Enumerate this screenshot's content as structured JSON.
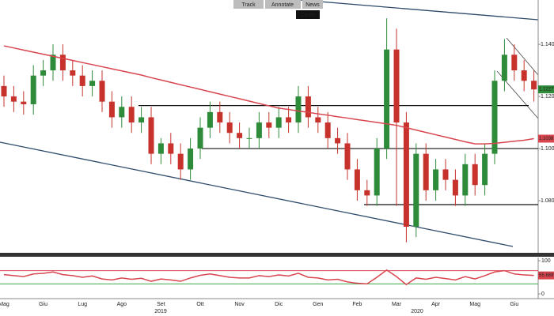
{
  "chart_data": {
    "type": "candlestick",
    "toolbar": [
      "Track",
      "Annotate",
      "News",
      "Zoom"
    ],
    "categories": [
      "Mag",
      null,
      null,
      null,
      "Giu",
      null,
      null,
      null,
      "Lug",
      null,
      null,
      null,
      "Ago",
      null,
      null,
      null,
      "Set",
      null,
      null,
      null,
      "Ott",
      null,
      null,
      null,
      "Nov",
      null,
      null,
      null,
      "Dic",
      null,
      null,
      null,
      "Gen",
      null,
      null,
      null,
      "Feb",
      null,
      null,
      null,
      "Mar",
      null,
      null,
      null,
      "Apr",
      null,
      null,
      null,
      "Mag",
      null,
      null,
      null,
      "Giu",
      null,
      null
    ],
    "years": [
      "2019",
      "2020"
    ],
    "open": [
      1.124,
      1.12,
      1.118,
      1.117,
      1.128,
      1.13,
      1.136,
      1.13,
      1.128,
      1.124,
      1.126,
      1.118,
      1.112,
      1.116,
      1.11,
      1.112,
      1.098,
      1.102,
      1.098,
      1.092,
      1.1,
      1.108,
      1.114,
      1.11,
      1.106,
      1.104,
      1.104,
      1.11,
      1.108,
      1.112,
      1.11,
      1.12,
      1.112,
      1.11,
      1.104,
      1.102,
      1.092,
      1.084,
      1.082,
      1.1,
      1.138,
      1.11,
      1.07,
      1.098,
      1.084,
      1.092,
      1.088,
      1.082,
      1.094,
      1.086,
      1.098,
      1.126,
      1.136,
      1.13,
      1.126
    ],
    "high": [
      1.128,
      1.124,
      1.122,
      1.132,
      1.134,
      1.14,
      1.14,
      1.134,
      1.132,
      1.13,
      1.13,
      1.122,
      1.12,
      1.12,
      1.116,
      1.116,
      1.104,
      1.106,
      1.102,
      1.104,
      1.112,
      1.118,
      1.118,
      1.114,
      1.11,
      1.108,
      1.114,
      1.114,
      1.116,
      1.116,
      1.124,
      1.124,
      1.116,
      1.114,
      1.108,
      1.106,
      1.096,
      1.088,
      1.104,
      1.15,
      1.146,
      1.114,
      1.102,
      1.102,
      1.096,
      1.096,
      1.092,
      1.098,
      1.098,
      1.102,
      1.13,
      1.142,
      1.14,
      1.134,
      1.13
    ],
    "low": [
      1.116,
      1.114,
      1.113,
      1.113,
      1.124,
      1.126,
      1.126,
      1.124,
      1.12,
      1.12,
      1.114,
      1.108,
      1.108,
      1.106,
      1.106,
      1.094,
      1.094,
      1.094,
      1.088,
      1.088,
      1.096,
      1.104,
      1.106,
      1.102,
      1.1,
      1.1,
      1.1,
      1.104,
      1.104,
      1.106,
      1.106,
      1.108,
      1.106,
      1.1,
      1.098,
      1.088,
      1.08,
      1.078,
      1.078,
      1.096,
      1.078,
      1.064,
      1.066,
      1.08,
      1.08,
      1.084,
      1.078,
      1.078,
      1.082,
      1.082,
      1.094,
      1.122,
      1.126,
      1.122,
      1.118
    ],
    "close": [
      1.12,
      1.118,
      1.117,
      1.128,
      1.13,
      1.136,
      1.13,
      1.128,
      1.124,
      1.126,
      1.118,
      1.112,
      1.116,
      1.11,
      1.112,
      1.098,
      1.102,
      1.098,
      1.092,
      1.1,
      1.108,
      1.114,
      1.11,
      1.106,
      1.104,
      1.104,
      1.11,
      1.108,
      1.112,
      1.11,
      1.12,
      1.112,
      1.11,
      1.104,
      1.102,
      1.092,
      1.084,
      1.082,
      1.1,
      1.138,
      1.11,
      1.07,
      1.098,
      1.084,
      1.092,
      1.088,
      1.082,
      1.094,
      1.086,
      1.098,
      1.126,
      1.136,
      1.13,
      1.126,
      1.1227
    ],
    "up_color": "#2e8b3a",
    "down_color": "#c8322c",
    "moving_average": {
      "color": "#d9454f",
      "values": [
        1.1394,
        1.1386,
        1.1378,
        1.137,
        1.1362,
        1.1354,
        1.1346,
        1.1338,
        1.133,
        1.1322,
        1.1314,
        1.1306,
        1.1298,
        1.129,
        1.1282,
        1.1272,
        1.1263,
        1.1254,
        1.1245,
        1.1236,
        1.1227,
        1.1218,
        1.1209,
        1.12,
        1.1191,
        1.1182,
        1.1173,
        1.1164,
        1.1155,
        1.115,
        1.1144,
        1.1139,
        1.1133,
        1.1128,
        1.1122,
        1.1117,
        1.1111,
        1.1106,
        1.11,
        1.1095,
        1.1089,
        1.108,
        1.1071,
        1.1062,
        1.1053,
        1.1044,
        1.1035,
        1.1026,
        1.1018,
        1.1018,
        1.102,
        1.1024,
        1.1028,
        1.1032,
        1.1038
      ]
    },
    "levels": [
      1.1165,
      1.1,
      1.0785
    ],
    "ylim": [
      1.06,
      1.157
    ],
    "yticks": [
      {
        "value": 1.14,
        "label": "1.1400"
      },
      {
        "value": 1.12,
        "label": "1.1200"
      },
      {
        "value": 1.1,
        "label": "1.1000"
      },
      {
        "value": 1.08,
        "label": "1.0800"
      }
    ],
    "rsi": {
      "color": "#d9454f",
      "values": [
        58,
        55,
        52,
        60,
        62,
        66,
        58,
        55,
        50,
        54,
        45,
        42,
        48,
        44,
        47,
        38,
        45,
        42,
        38,
        48,
        56,
        60,
        55,
        50,
        48,
        48,
        55,
        52,
        57,
        54,
        62,
        50,
        48,
        42,
        44,
        36,
        32,
        30,
        50,
        72,
        52,
        28,
        48,
        44,
        50,
        46,
        42,
        52,
        45,
        55,
        66,
        70,
        60,
        57,
        55.6889
      ],
      "bands": [
        70,
        30
      ],
      "band_colors": [
        "#d9454f",
        "#3aa648"
      ],
      "ylim": [
        0,
        100
      ],
      "yticks": [
        100,
        0
      ]
    }
  }
}
